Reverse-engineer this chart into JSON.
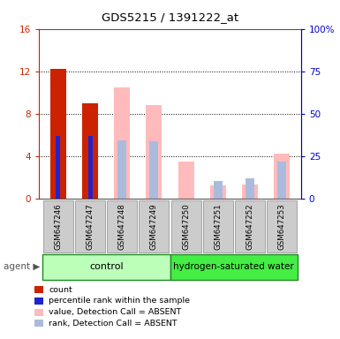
{
  "title": "GDS5215 / 1391222_at",
  "samples": [
    "GSM647246",
    "GSM647247",
    "GSM647248",
    "GSM647249",
    "GSM647250",
    "GSM647251",
    "GSM647252",
    "GSM647253"
  ],
  "red_bars": [
    12.2,
    9.0,
    0,
    0,
    0,
    0,
    0,
    0
  ],
  "blue_bars": [
    5.9,
    5.9,
    0,
    0,
    0,
    0,
    0,
    0
  ],
  "pink_bars": [
    0,
    0,
    10.5,
    8.8,
    3.5,
    1.2,
    1.3,
    4.2
  ],
  "light_blue_bars": [
    0,
    0,
    5.5,
    5.4,
    0,
    1.6,
    1.9,
    3.5
  ],
  "ylim_left": [
    0,
    16
  ],
  "ylim_right": [
    0,
    100
  ],
  "yticks_left": [
    0,
    4,
    8,
    12,
    16
  ],
  "yticks_right": [
    0,
    25,
    50,
    75,
    100
  ],
  "ytick_labels_right": [
    "0",
    "25",
    "50",
    "75",
    "100%"
  ],
  "left_axis_color": "#cc2200",
  "right_axis_color": "#0000cc",
  "bar_width": 0.5,
  "group_control_color": "#bbffbb",
  "group_hw_color": "#44ee44",
  "legend_items": [
    {
      "label": "count",
      "color": "#cc2200"
    },
    {
      "label": "percentile rank within the sample",
      "color": "#2222cc"
    },
    {
      "label": "value, Detection Call = ABSENT",
      "color": "#ffbbbb"
    },
    {
      "label": "rank, Detection Call = ABSENT",
      "color": "#aabbdd"
    }
  ],
  "n_control": 4,
  "n_hw": 4,
  "agent_label": "agent",
  "control_label": "control",
  "hw_label": "hydrogen-saturated water"
}
